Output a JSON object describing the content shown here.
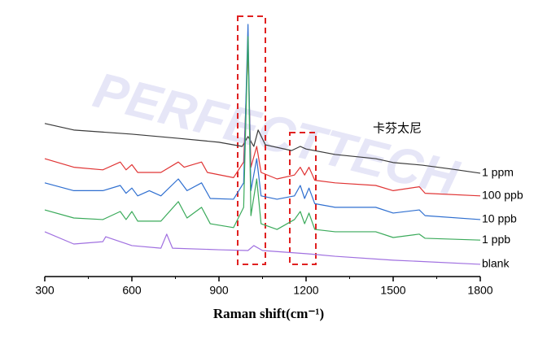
{
  "chart_data": {
    "type": "line",
    "x_label": "Raman shift(cm⁻¹)",
    "annotation": "卡芬太尼",
    "watermark": "PERFECTTECH",
    "xlim": [
      300,
      1800
    ],
    "xticks": [
      300,
      600,
      900,
      1200,
      1500,
      1800
    ],
    "xminorticks": [
      450,
      750,
      1050,
      1350,
      1650
    ],
    "ylim": [
      0,
      100
    ],
    "series": [
      {
        "name": "1 ppm",
        "color": "#3a3a3a",
        "x": [
          300,
          400,
          600,
          760,
          900,
          980,
          1000,
          1020,
          1035,
          1060,
          1150,
          1180,
          1200,
          1300,
          1440,
          1500,
          1600,
          1700,
          1800
        ],
        "values": [
          58.8,
          56.3,
          54.7,
          53.1,
          51.6,
          50,
          53.8,
          50,
          56.3,
          50.6,
          48.4,
          50,
          49,
          46.9,
          45.3,
          43.8,
          42.8,
          41.3,
          39.7
        ]
      },
      {
        "name": "100 ppb",
        "color": "#e03434",
        "x": [
          300,
          400,
          500,
          560,
          580,
          600,
          620,
          700,
          760,
          780,
          840,
          860,
          950,
          985,
          1000,
          1010,
          1030,
          1045,
          1100,
          1160,
          1180,
          1195,
          1210,
          1230,
          1300,
          1440,
          1500,
          1590,
          1610,
          1800
        ],
        "values": [
          45.3,
          42,
          41,
          44,
          41,
          43,
          40,
          40,
          44,
          42,
          44,
          40,
          38,
          44,
          87.5,
          42,
          50,
          40,
          37.5,
          39,
          42,
          39,
          42,
          37,
          36,
          35,
          33,
          34.5,
          32,
          31
        ]
      },
      {
        "name": "10 ppb",
        "color": "#2f6fd0",
        "x": [
          300,
          400,
          500,
          560,
          580,
          600,
          620,
          660,
          700,
          760,
          790,
          840,
          870,
          950,
          985,
          1000,
          1010,
          1030,
          1045,
          1100,
          1160,
          1180,
          1195,
          1210,
          1230,
          1300,
          1440,
          1500,
          1590,
          1610,
          1800
        ],
        "values": [
          36,
          33,
          33,
          35,
          32,
          34,
          31,
          33,
          31,
          37.5,
          33,
          36,
          30,
          29.7,
          36,
          96.9,
          33,
          45.3,
          31,
          29.7,
          31,
          35,
          30,
          34,
          28,
          26.6,
          26.6,
          24.4,
          25.6,
          23.4,
          21.9
        ]
      },
      {
        "name": "1 ppb",
        "color": "#3aaa5a",
        "x": [
          300,
          400,
          500,
          560,
          580,
          600,
          620,
          700,
          760,
          790,
          840,
          870,
          950,
          985,
          1000,
          1010,
          1030,
          1045,
          1100,
          1160,
          1180,
          1195,
          1210,
          1230,
          1300,
          1440,
          1500,
          1590,
          1610,
          1800
        ],
        "values": [
          25.6,
          22.5,
          21.9,
          25,
          21.9,
          25,
          21.3,
          21.3,
          28.8,
          22.5,
          26.6,
          20.3,
          18.8,
          26.6,
          92.2,
          23.4,
          37.5,
          20.3,
          18.1,
          21.9,
          25,
          20.3,
          24.4,
          18.1,
          17.2,
          17.2,
          15,
          16.3,
          14.7,
          14
        ]
      },
      {
        "name": "blank",
        "color": "#a070e0",
        "x": [
          300,
          400,
          500,
          510,
          600,
          700,
          720,
          740,
          900,
          1000,
          1020,
          1050,
          1200,
          1300,
          1500,
          1800
        ],
        "values": [
          17.2,
          12.5,
          13.4,
          15.3,
          11.9,
          10.9,
          16.3,
          10.9,
          10.3,
          10,
          11.9,
          10,
          8.8,
          7.8,
          6.3,
          4.7
        ]
      }
    ]
  }
}
